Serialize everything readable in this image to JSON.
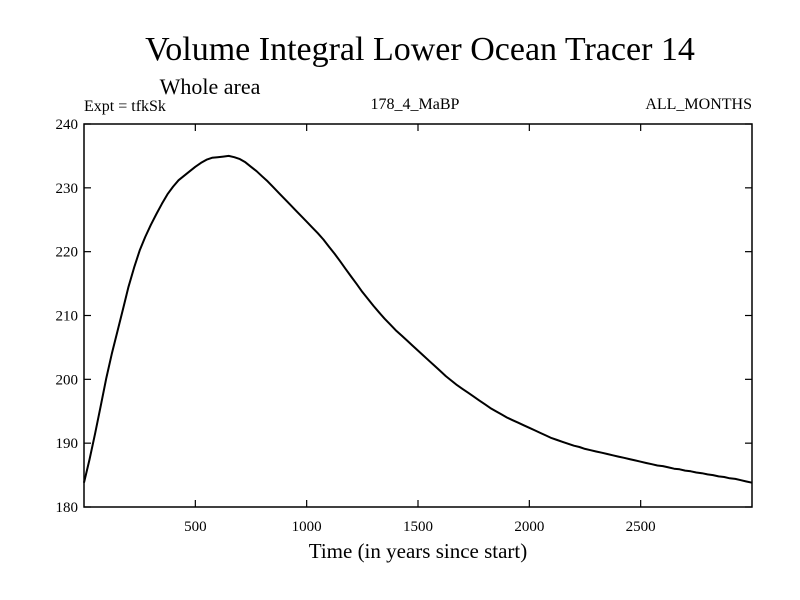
{
  "chart_data": {
    "type": "line",
    "title": "Volume Integral Lower Ocean Tracer 14",
    "subtitle": "Whole area",
    "expt_label": "Expt = tfkSk",
    "center_label": "178_4_MaBP",
    "right_label": "ALL_MONTHS",
    "xlabel": "Time (in years since start)",
    "ylabel": "",
    "xlim": [
      0,
      3000
    ],
    "ylim": [
      180,
      240
    ],
    "x_ticks": [
      500,
      1000,
      1500,
      2000,
      2500
    ],
    "x_tick_labels": [
      "500",
      "1000",
      "1500",
      "2000",
      "2500"
    ],
    "y_ticks": [
      180,
      190,
      200,
      210,
      220,
      230,
      240
    ],
    "y_tick_labels": [
      "180",
      "190",
      "200",
      "210",
      "220",
      "230",
      "240"
    ],
    "grid": false,
    "series": [
      {
        "name": "tracer14",
        "x": [
          0,
          25,
          50,
          75,
          100,
          125,
          150,
          175,
          200,
          225,
          250,
          275,
          300,
          325,
          350,
          375,
          400,
          425,
          450,
          475,
          500,
          525,
          550,
          575,
          600,
          625,
          650,
          675,
          700,
          725,
          750,
          775,
          800,
          825,
          850,
          875,
          900,
          925,
          950,
          975,
          1000,
          1025,
          1050,
          1075,
          1100,
          1125,
          1150,
          1175,
          1200,
          1225,
          1250,
          1275,
          1300,
          1325,
          1350,
          1375,
          1400,
          1425,
          1450,
          1475,
          1500,
          1525,
          1550,
          1575,
          1600,
          1625,
          1650,
          1675,
          1700,
          1725,
          1750,
          1775,
          1800,
          1825,
          1850,
          1875,
          1900,
          1925,
          1950,
          1975,
          2000,
          2025,
          2050,
          2075,
          2100,
          2125,
          2150,
          2175,
          2200,
          2225,
          2250,
          2275,
          2300,
          2325,
          2350,
          2375,
          2400,
          2425,
          2450,
          2475,
          2500,
          2525,
          2550,
          2575,
          2600,
          2625,
          2650,
          2675,
          2700,
          2725,
          2750,
          2775,
          2800,
          2825,
          2850,
          2875,
          2900,
          2925,
          2950,
          2975,
          3000
        ],
        "values": [
          183.8,
          187.5,
          191.5,
          195.8,
          200.2,
          204.0,
          207.5,
          211.0,
          214.5,
          217.5,
          220.2,
          222.3,
          224.2,
          225.9,
          227.5,
          229.0,
          230.2,
          231.2,
          231.9,
          232.6,
          233.3,
          233.9,
          234.4,
          234.7,
          234.8,
          234.9,
          235.0,
          234.8,
          234.5,
          234.0,
          233.3,
          232.6,
          231.8,
          231.0,
          230.1,
          229.2,
          228.3,
          227.4,
          226.5,
          225.6,
          224.7,
          223.8,
          222.9,
          221.9,
          220.8,
          219.7,
          218.5,
          217.3,
          216.1,
          214.9,
          213.7,
          212.6,
          211.5,
          210.5,
          209.5,
          208.6,
          207.7,
          206.9,
          206.1,
          205.3,
          204.5,
          203.7,
          202.9,
          202.1,
          201.3,
          200.5,
          199.8,
          199.1,
          198.5,
          197.9,
          197.3,
          196.7,
          196.1,
          195.5,
          195.0,
          194.5,
          194.0,
          193.6,
          193.2,
          192.8,
          192.4,
          192.0,
          191.6,
          191.2,
          190.8,
          190.5,
          190.2,
          189.9,
          189.6,
          189.4,
          189.1,
          188.9,
          188.7,
          188.5,
          188.3,
          188.1,
          187.9,
          187.7,
          187.5,
          187.3,
          187.1,
          186.9,
          186.7,
          186.5,
          186.4,
          186.2,
          186.0,
          185.9,
          185.7,
          185.6,
          185.4,
          185.3,
          185.1,
          185.0,
          184.8,
          184.7,
          184.5,
          184.4,
          184.2,
          184.0,
          183.8
        ]
      }
    ]
  }
}
